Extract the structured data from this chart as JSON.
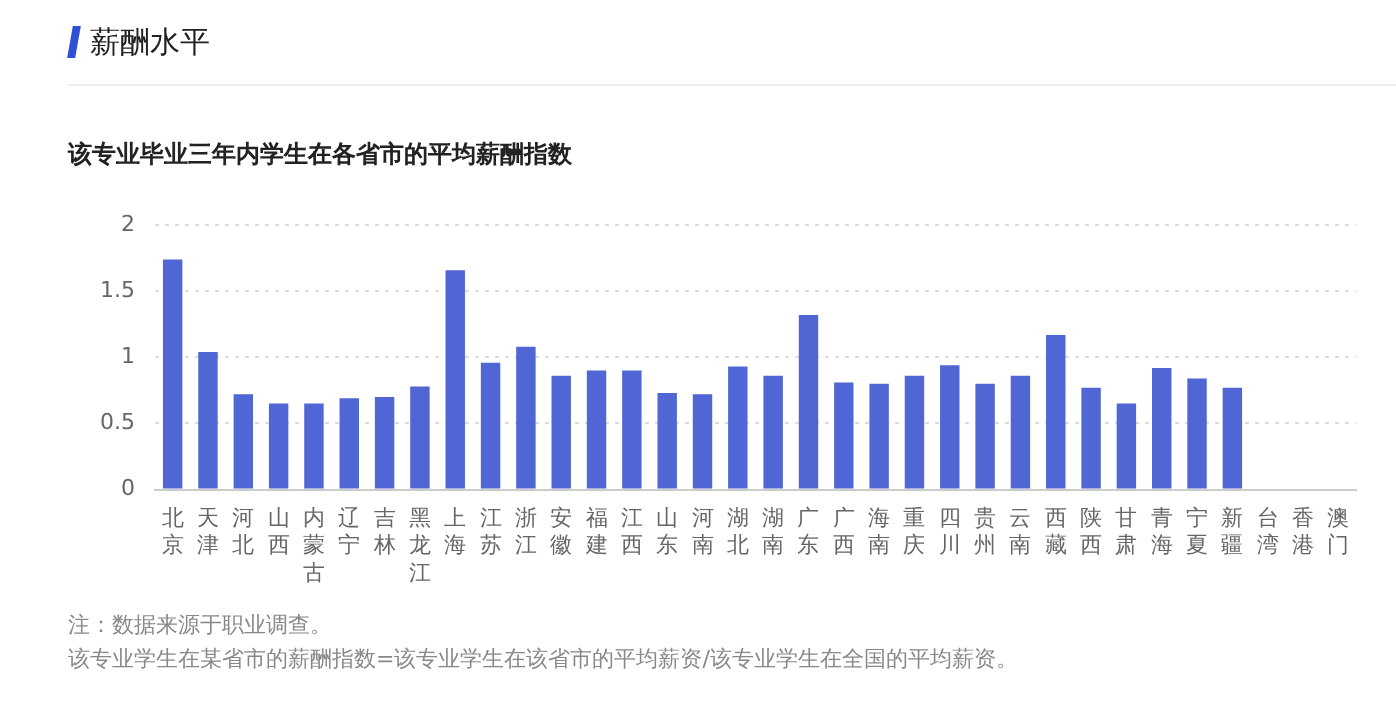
{
  "chart_data": {
    "type": "bar",
    "title": "薪酬水平",
    "subtitle": "该专业毕业三年内学生在各省市的平均薪酬指数",
    "categories": [
      "北京",
      "天津",
      "河北",
      "山西",
      "内蒙古",
      "辽宁",
      "吉林",
      "黑龙江",
      "上海",
      "江苏",
      "浙江",
      "安徽",
      "福建",
      "江西",
      "山东",
      "河南",
      "湖北",
      "湖南",
      "广东",
      "广西",
      "海南",
      "重庆",
      "四川",
      "贵州",
      "云南",
      "西藏",
      "陕西",
      "甘肃",
      "青海",
      "宁夏",
      "新疆",
      "台湾",
      "香港",
      "澳门"
    ],
    "values": [
      1.74,
      1.04,
      0.72,
      0.65,
      0.65,
      0.69,
      0.7,
      0.78,
      1.66,
      0.96,
      1.08,
      0.86,
      0.9,
      0.9,
      0.73,
      0.72,
      0.93,
      0.86,
      1.32,
      0.81,
      0.8,
      0.86,
      0.94,
      0.8,
      0.86,
      1.17,
      0.77,
      0.65,
      0.92,
      0.84,
      0.77,
      null,
      null,
      null
    ],
    "color": "#4f66d4",
    "ylim": [
      0,
      2
    ],
    "yticks": [
      0,
      0.5,
      1,
      1.5,
      2
    ],
    "grid": "y",
    "legend": false,
    "annotations": [
      "注：数据来源于职业调查。",
      "该专业学生在某省市的薪酬指数=该专业学生在该省市的平均薪资/该专业学生在全国的平均薪资。"
    ]
  }
}
